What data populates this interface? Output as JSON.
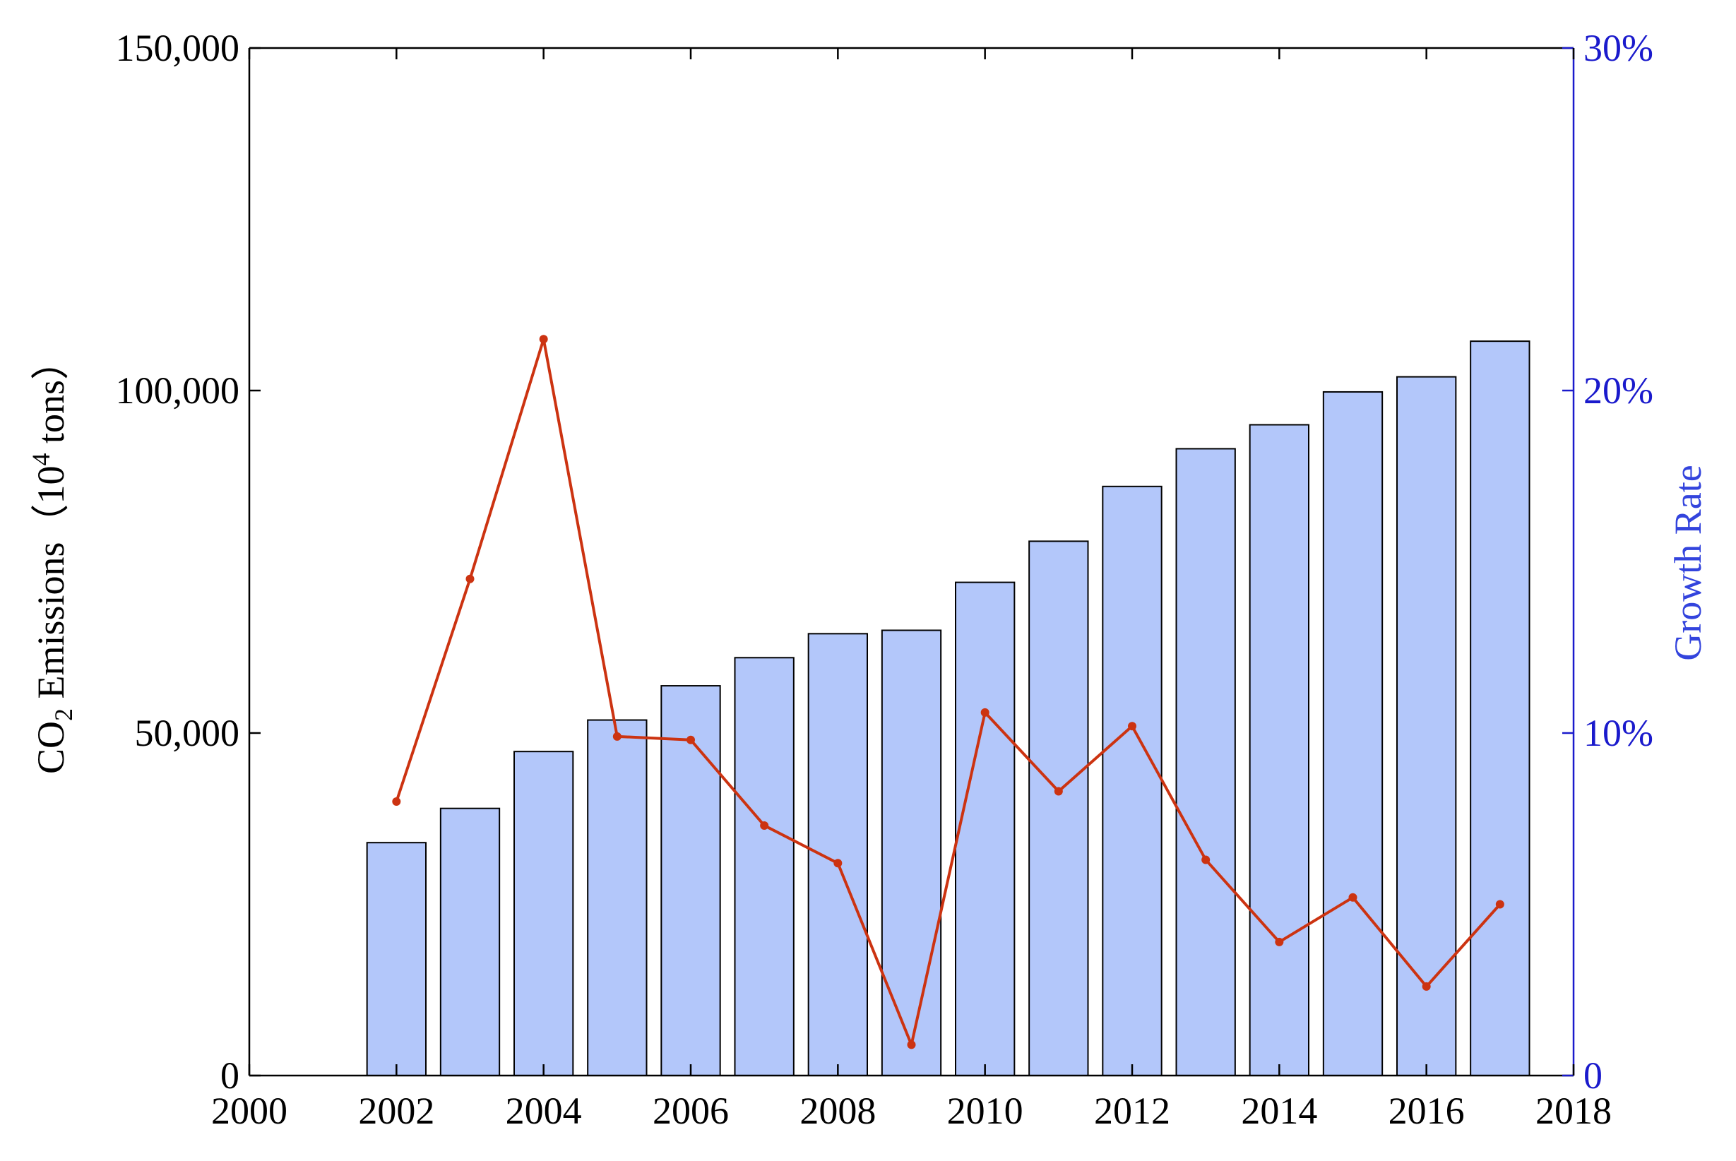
{
  "chart_data": {
    "type": "bar",
    "x": [
      2002,
      2003,
      2004,
      2005,
      2006,
      2007,
      2008,
      2009,
      2010,
      2011,
      2012,
      2013,
      2014,
      2015,
      2016,
      2017
    ],
    "series": [
      {
        "axis": "left",
        "chart_type": "bar",
        "values": [
          34000,
          39000,
          47300,
          51900,
          56900,
          61000,
          64500,
          65000,
          72000,
          78000,
          86000,
          91500,
          95000,
          99800,
          102000,
          107200
        ],
        "color": "#b3c7fa"
      },
      {
        "axis": "right",
        "chart_type": "line",
        "values": [
          8.0,
          14.5,
          21.5,
          9.9,
          9.8,
          7.3,
          6.2,
          0.9,
          10.6,
          8.3,
          10.2,
          6.3,
          3.9,
          5.2,
          2.6,
          5.0
        ],
        "color": "#cc3311"
      }
    ],
    "xlim": [
      2000,
      2018
    ],
    "x_ticks": [
      "2000",
      "2002",
      "2004",
      "2006",
      "2008",
      "2010",
      "2012",
      "2014",
      "2016",
      "2018"
    ],
    "ylim_left": [
      0,
      150000
    ],
    "ylim_right": [
      0,
      30
    ],
    "y_ticks_left": [
      "0",
      "50,000",
      "100,000",
      "150,000"
    ],
    "y_ticks_right": [
      "0",
      "10%",
      "20%",
      "30%"
    ],
    "ylabel_left": {
      "pre": "CO",
      "sub": "2",
      "mid": " Emissions（10",
      "sup": "4",
      "post": " tons）"
    },
    "ylabel_right": "Growth Rate",
    "right_axis_color": "#1a1acc",
    "right_label_color": "#3344dd",
    "grid": false
  }
}
